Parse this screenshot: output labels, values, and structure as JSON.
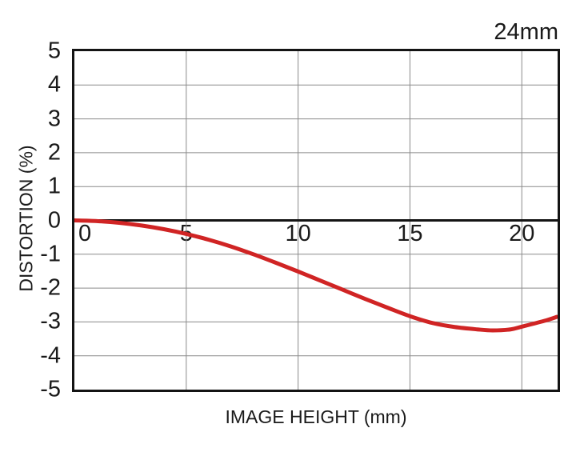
{
  "colors": {
    "background": "#ffffff",
    "grid": "#8a8a8a",
    "axis": "#141414",
    "text": "#1a1a1a",
    "curve_red": "#d02424"
  },
  "chart_data": {
    "type": "line",
    "title": "24mm",
    "xlabel": "IMAGE HEIGHT (mm)",
    "ylabel": "DISTORTION (%)",
    "xlim": [
      0,
      21.6
    ],
    "ylim": [
      -5,
      5
    ],
    "x_ticks": [
      0,
      5,
      10,
      15,
      20
    ],
    "y_ticks": [
      5,
      4,
      3,
      2,
      1,
      0,
      -1,
      -2,
      -3,
      -4,
      -5
    ],
    "grid": true,
    "legend": "none",
    "series": [
      {
        "name": "Distortion",
        "color": "#d02424",
        "points": [
          [
            0,
            0.0
          ],
          [
            1,
            -0.02
          ],
          [
            2,
            -0.07
          ],
          [
            3,
            -0.15
          ],
          [
            4,
            -0.26
          ],
          [
            5,
            -0.4
          ],
          [
            6,
            -0.57
          ],
          [
            7,
            -0.77
          ],
          [
            8,
            -1.0
          ],
          [
            9,
            -1.25
          ],
          [
            10,
            -1.51
          ],
          [
            11,
            -1.78
          ],
          [
            12,
            -2.05
          ],
          [
            13,
            -2.32
          ],
          [
            14,
            -2.58
          ],
          [
            15,
            -2.83
          ],
          [
            16,
            -3.03
          ],
          [
            17,
            -3.15
          ],
          [
            18,
            -3.22
          ],
          [
            18.7,
            -3.25
          ],
          [
            19.5,
            -3.22
          ],
          [
            20,
            -3.14
          ],
          [
            21,
            -2.97
          ],
          [
            21.57,
            -2.85
          ]
        ]
      }
    ]
  }
}
